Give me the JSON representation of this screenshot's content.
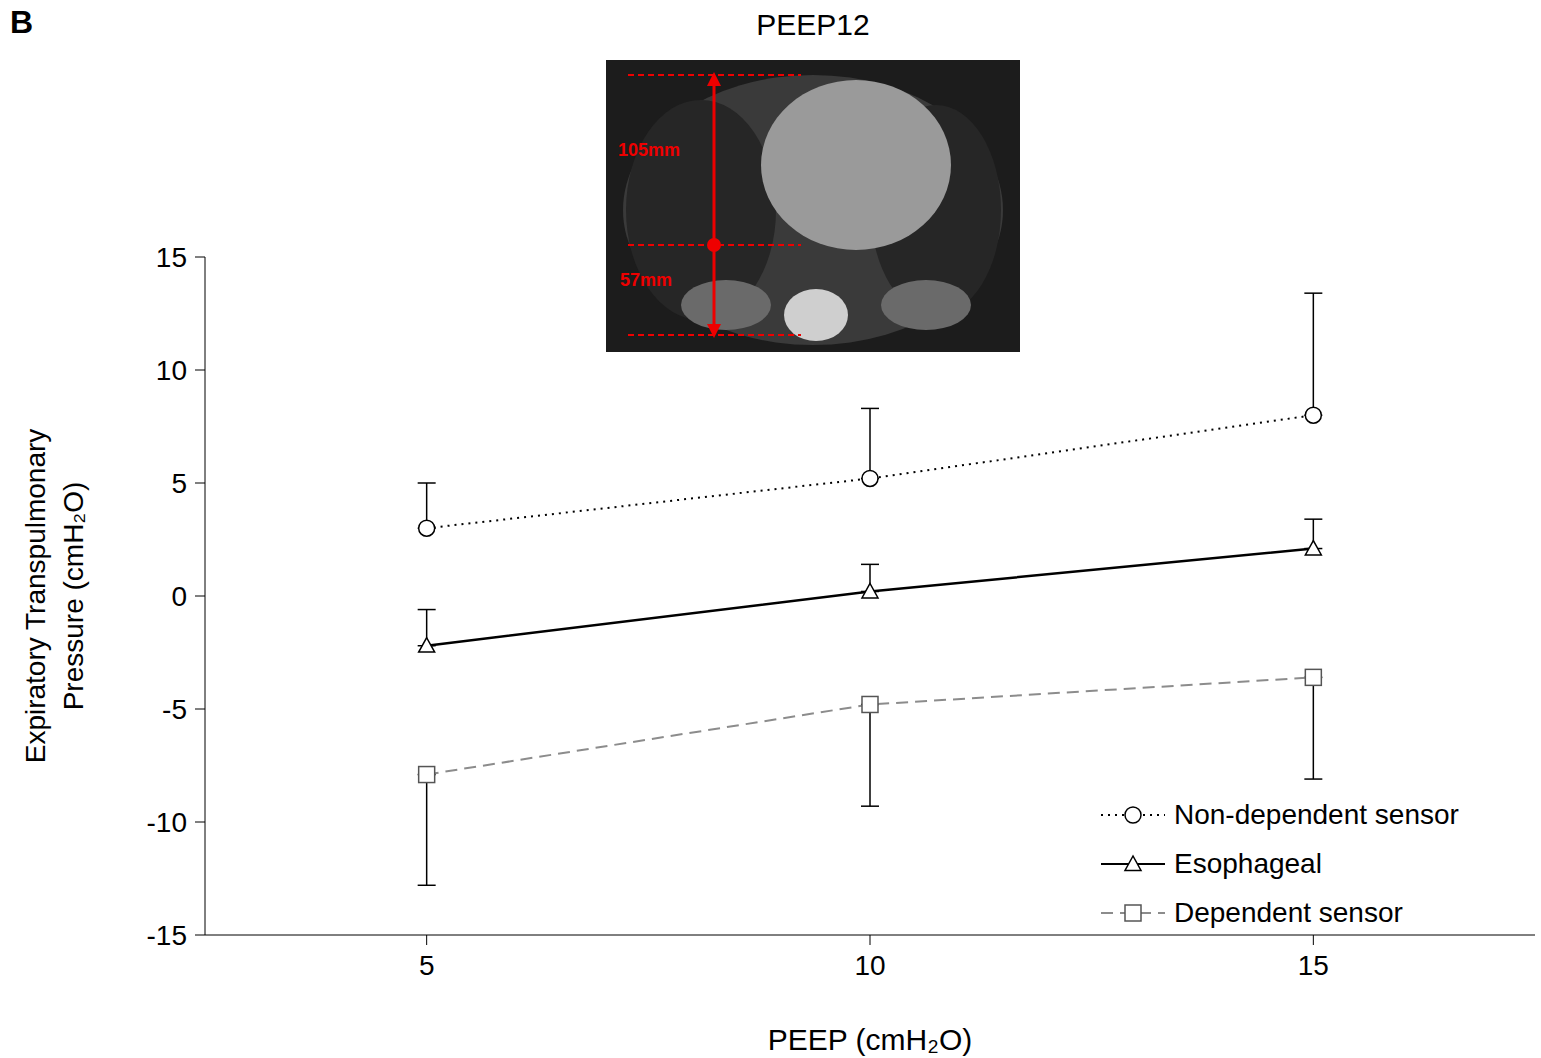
{
  "panel": "B",
  "inset": {
    "annotations": [
      "105mm",
      "57mm"
    ]
  },
  "chart_data": {
    "type": "line",
    "title": "PEEP12",
    "x_label": "PEEP (cmH₂O)",
    "y_label": "Expiratory Transpulmonary Pressure (cmH₂O)",
    "x": [
      5,
      10,
      15
    ],
    "xlim": [
      2.5,
      17.5
    ],
    "xticks": [
      5,
      10,
      15
    ],
    "ylim": [
      -15,
      15
    ],
    "yticks": [
      -15,
      -10,
      -5,
      0,
      5,
      10,
      15
    ],
    "grid": false,
    "legend": "bottom-right",
    "series": [
      {
        "name": "Non-dependent sensor",
        "color": "#000000",
        "marker": "circle",
        "line_style": "dotted",
        "values": [
          3,
          5.2,
          8
        ],
        "errors": [
          [
            0,
            2
          ],
          [
            0,
            3.1
          ],
          [
            0,
            5.4
          ]
        ]
      },
      {
        "name": "Esophageal",
        "color": "#000000",
        "marker": "triangle",
        "line_style": "solid",
        "values": [
          -2.2,
          0.2,
          2.1
        ],
        "errors": [
          [
            0,
            1.6
          ],
          [
            0,
            1.2
          ],
          [
            0,
            1.3
          ]
        ]
      },
      {
        "name": "Dependent sensor",
        "color": "#8c8c8c",
        "marker": "square",
        "line_style": "dashed",
        "values": [
          -7.9,
          -4.8,
          -3.6
        ],
        "errors": [
          [
            4.9,
            0
          ],
          [
            4.5,
            0
          ],
          [
            4.5,
            0
          ]
        ]
      }
    ]
  }
}
